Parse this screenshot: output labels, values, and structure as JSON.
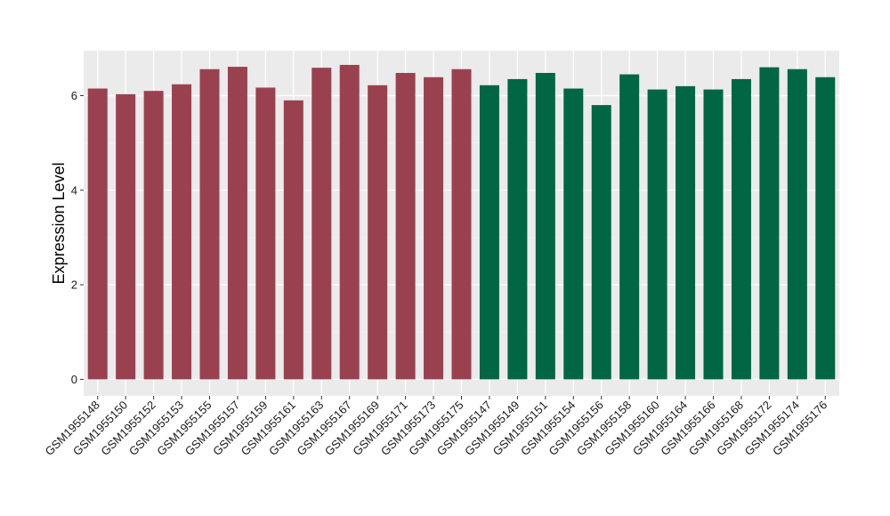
{
  "chart_data": {
    "type": "bar",
    "ylabel": "Expression Level",
    "xlabel": "",
    "ylim": [
      -0.35,
      6.95
    ],
    "yticks": [
      0,
      2,
      4,
      6
    ],
    "grid": true,
    "background": "#ebebeb",
    "categories": [
      "GSM1955148",
      "GSM1955150",
      "GSM1955152",
      "GSM1955153",
      "GSM1955155",
      "GSM1955157",
      "GSM1955159",
      "GSM1955161",
      "GSM1955163",
      "GSM1955167",
      "GSM1955169",
      "GSM1955171",
      "GSM1955173",
      "GSM1955175",
      "GSM1955147",
      "GSM1955149",
      "GSM1955151",
      "GSM1955154",
      "GSM1955156",
      "GSM1955158",
      "GSM1955160",
      "GSM1955164",
      "GSM1955166",
      "GSM1955168",
      "GSM1955172",
      "GSM1955174",
      "GSM1955176"
    ],
    "values": [
      6.15,
      6.03,
      6.1,
      6.24,
      6.56,
      6.61,
      6.17,
      5.9,
      6.59,
      6.65,
      6.22,
      6.48,
      6.39,
      6.56,
      6.22,
      6.35,
      6.48,
      6.15,
      5.8,
      6.45,
      6.13,
      6.2,
      6.13,
      6.35,
      6.6,
      6.56,
      6.39
    ],
    "bar_colors": [
      "#9a4150",
      "#9a4150",
      "#9a4150",
      "#9a4150",
      "#9a4150",
      "#9a4150",
      "#9a4150",
      "#9a4150",
      "#9a4150",
      "#9a4150",
      "#9a4150",
      "#9a4150",
      "#9a4150",
      "#9a4150",
      "#006644",
      "#006644",
      "#006644",
      "#006644",
      "#006644",
      "#006644",
      "#006644",
      "#006644",
      "#006644",
      "#006644",
      "#006644",
      "#006644",
      "#006644"
    ]
  }
}
